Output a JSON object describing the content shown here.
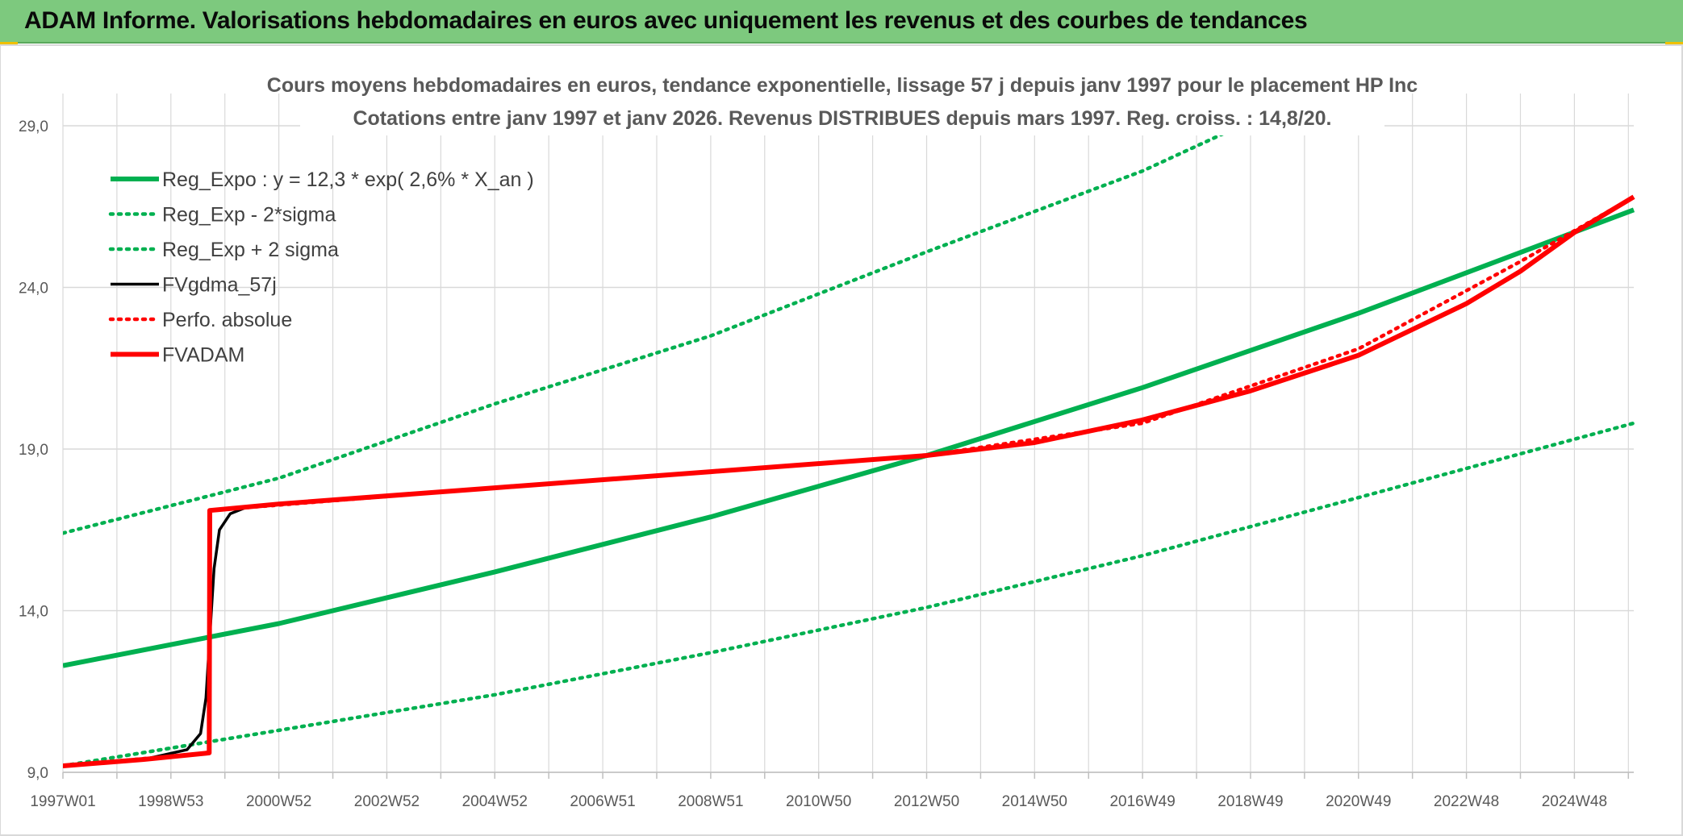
{
  "header": {
    "title": "ADAM Informe. Valorisations hebdomadaires en euros avec uniquement les revenus et des courbes de tendances"
  },
  "colors": {
    "header_bg": "#7dc97e",
    "green": "#00b050",
    "red": "#ff0000",
    "black": "#000000",
    "grid": "#d9d9d9",
    "corner": "#f0c000"
  },
  "chart_data": {
    "type": "line",
    "title": "Cours moyens hebdomadaires en euros, tendance exponentielle, lissage 57 j depuis janv 1997 pour le placement HP Inc",
    "subtitle": "Cotations entre janv 1997 et janv 2026. Revenus DISTRIBUES depuis mars 1997. Reg. croiss. : 14,8/20.",
    "xlabel": "",
    "ylabel": "",
    "ylim": [
      9.0,
      29.0
    ],
    "yticks": [
      "9,0",
      "14,0",
      "19,0",
      "24,0",
      "29,0"
    ],
    "ytick_values": [
      9.0,
      14.0,
      19.0,
      24.0,
      29.0
    ],
    "xlim": [
      1997.0,
      2026.1
    ],
    "xticks": [
      {
        "label": "1997W01",
        "x": 1997.0
      },
      {
        "label": "1998W53",
        "x": 1999.0
      },
      {
        "label": "2000W52",
        "x": 2001.0
      },
      {
        "label": "2002W52",
        "x": 2003.0
      },
      {
        "label": "2004W52",
        "x": 2005.0
      },
      {
        "label": "2006W51",
        "x": 2007.0
      },
      {
        "label": "2008W51",
        "x": 2009.0
      },
      {
        "label": "2010W50",
        "x": 2011.0
      },
      {
        "label": "2012W50",
        "x": 2013.0
      },
      {
        "label": "2014W50",
        "x": 2015.0
      },
      {
        "label": "2016W49",
        "x": 2017.0
      },
      {
        "label": "2018W49",
        "x": 2019.0
      },
      {
        "label": "2020W49",
        "x": 2021.0
      },
      {
        "label": "2022W48",
        "x": 2023.0
      },
      {
        "label": "2024W48",
        "x": 2025.0
      }
    ],
    "grid": true,
    "legend_position": "top-left",
    "series": [
      {
        "name": "Reg_Expo : y = 12,3 * exp( 2,6% *  X_an )",
        "color": "#00b050",
        "style": "solid",
        "x": [
          1997.0,
          2001.0,
          2005.0,
          2009.0,
          2013.0,
          2017.0,
          2021.0,
          2026.1
        ],
        "y": [
          12.3,
          13.6,
          15.2,
          16.9,
          18.8,
          20.9,
          23.2,
          26.4
        ]
      },
      {
        "name": "Reg_Exp - 2*sigma",
        "color": "#00b050",
        "style": "dotted",
        "x": [
          1997.0,
          2001.0,
          2005.0,
          2009.0,
          2013.0,
          2017.0,
          2021.0,
          2026.1
        ],
        "y": [
          9.2,
          10.3,
          11.4,
          12.7,
          14.1,
          15.7,
          17.5,
          19.8
        ]
      },
      {
        "name": "Reg_Exp + 2 sigma",
        "color": "#00b050",
        "style": "dotted",
        "x": [
          1997.0,
          2001.0,
          2005.0,
          2009.0,
          2013.0,
          2017.0,
          2020.5,
          2026.1
        ],
        "y": [
          16.4,
          18.1,
          20.4,
          22.5,
          25.1,
          27.6,
          30.3,
          30.9
        ]
      },
      {
        "name": "FVgdma_57j",
        "color": "#000000",
        "style": "solid",
        "x": [
          1997.0,
          1998.5,
          1999.3,
          1999.55,
          1999.65,
          1999.72,
          1999.8,
          1999.9,
          2000.1,
          2000.4
        ],
        "y": [
          9.2,
          9.4,
          9.7,
          10.2,
          11.3,
          13.2,
          15.3,
          16.5,
          17.0,
          17.2
        ]
      },
      {
        "name": "Perfo. absolue",
        "color": "#ff0000",
        "style": "dotted",
        "x": [
          1997.0,
          1999.71,
          1999.72,
          2005.0,
          2013.0,
          2017.0,
          2021.0,
          2024.0,
          2026.1
        ],
        "y": [
          9.2,
          9.6,
          17.1,
          17.8,
          18.8,
          19.8,
          22.1,
          24.8,
          26.8
        ]
      },
      {
        "name": "FVADAM",
        "color": "#ff0000",
        "style": "solid",
        "x": [
          1997.0,
          1998.5,
          1999.71,
          1999.72,
          2001.0,
          2005.0,
          2009.0,
          2013.0,
          2015.0,
          2017.0,
          2019.0,
          2021.0,
          2023.0,
          2024.0,
          2025.0,
          2026.1
        ],
        "y": [
          9.2,
          9.4,
          9.6,
          17.1,
          17.3,
          17.8,
          18.3,
          18.8,
          19.2,
          19.9,
          20.8,
          21.9,
          23.5,
          24.5,
          25.7,
          26.8
        ]
      }
    ]
  }
}
